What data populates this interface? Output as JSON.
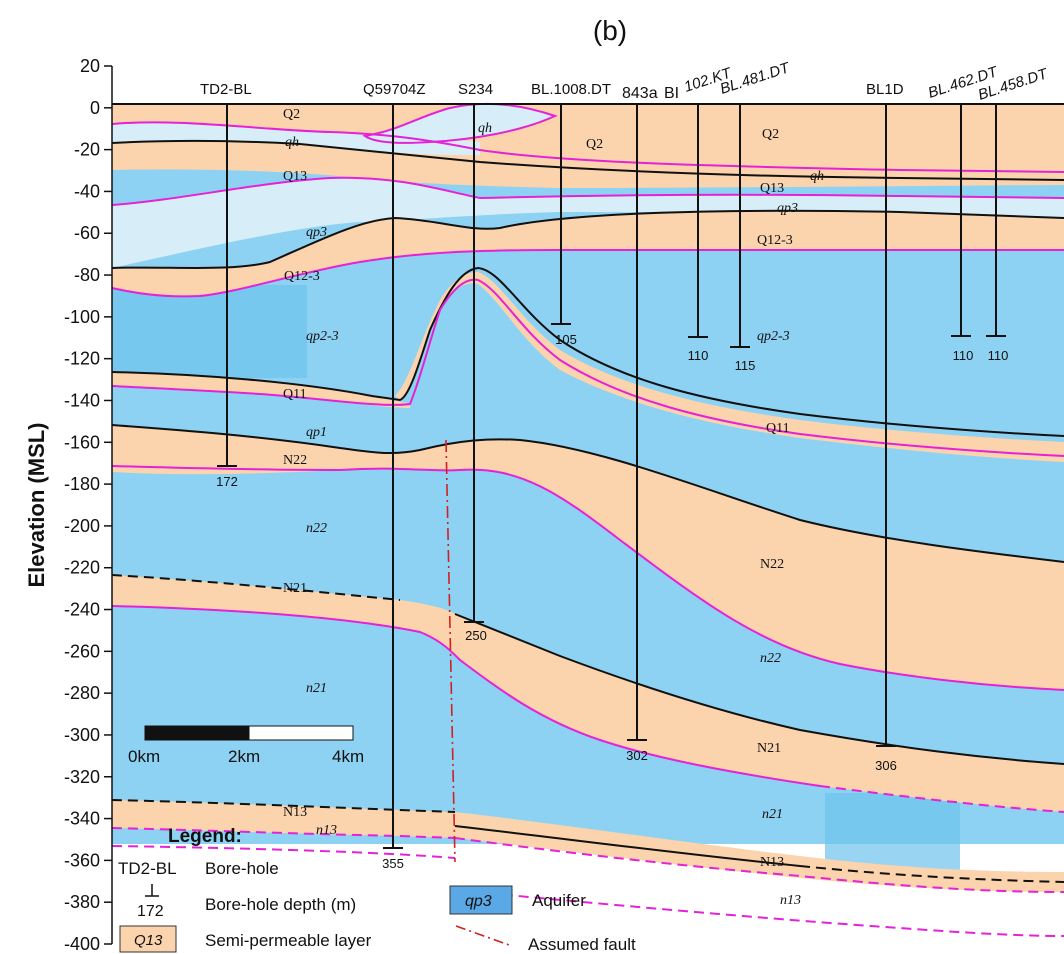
{
  "panel_label": "(b)",
  "y_axis": {
    "label": "Elevation (MSL)",
    "ticks": [
      "20",
      "0",
      "-20",
      "-40",
      "-60",
      "-80",
      "-100",
      "-120",
      "-140",
      "-160",
      "-180",
      "-200",
      "-220",
      "-240",
      "-260",
      "-280",
      "-300",
      "-320",
      "-340",
      "-360",
      "-380",
      "-400"
    ]
  },
  "boreholes": [
    {
      "name": "TD2-BL",
      "depth": "172"
    },
    {
      "name": "Q59704Z",
      "depth": "355"
    },
    {
      "name": "S234",
      "depth": "250"
    },
    {
      "name": "BL.1008.DT",
      "depth": "105"
    },
    {
      "name": "843a",
      "depth": "302"
    },
    {
      "name": "BI",
      "depth": ""
    },
    {
      "name": "102.KT",
      "depth": "110"
    },
    {
      "name": "BL.481.DT",
      "depth": "115"
    },
    {
      "name": "BL1D",
      "depth": "306"
    },
    {
      "name": "BL.462.DT",
      "depth": "110"
    },
    {
      "name": "BL.458.DT",
      "depth": "110"
    }
  ],
  "layer_labels": {
    "q2_a": "Q2",
    "qh_a": "qh",
    "qh_b": "qh",
    "q2_b": "Q2",
    "q2_c": "Q2",
    "qh_c": "qh",
    "q13_a": "Q13",
    "q13_b": "Q13",
    "qp3_a": "qp3",
    "qp3_b": "qp3",
    "q123_a": "Q12-3",
    "q123_b": "Q12-3",
    "qp23_a": "qp2-3",
    "qp23_b": "qp2-3",
    "q11_a": "Q11",
    "q11_b": "Q11",
    "qp1": "qp1",
    "n22_a": "N22",
    "n22_b": "n22",
    "n22_c": "N22",
    "n22_d": "n22",
    "n21_a": "N21",
    "n21_b": "n21",
    "n21_c": "N21",
    "n21_d": "n21",
    "n13_a": "N13",
    "n13_b": "n13",
    "n13_c": "N13",
    "n13_d": "n13"
  },
  "scale_bar": {
    "labels": [
      "0km",
      "2km",
      "4km"
    ]
  },
  "legend": {
    "title": "Legend:",
    "borehole_symbol": "TD2-BL",
    "borehole_text": "Bore-hole",
    "depth_symbol": "172",
    "depth_text": "Bore-hole depth (m)",
    "semi_symbol": "Q13",
    "semi_text": "Semi-permeable layer",
    "aquifer_symbol": "qp3",
    "aquifer_text": "Aquifer",
    "fault_text": "Assumed fault"
  },
  "colors": {
    "semi_permeable": "#fbd3ad",
    "aquifer": "#8ed2f3",
    "aquifer_light": "#d7eef9",
    "aquifer_dark": "#6ec3ec",
    "boundary_line": "#111111",
    "magenta_line": "#e522d6",
    "fault": "#d22020"
  }
}
